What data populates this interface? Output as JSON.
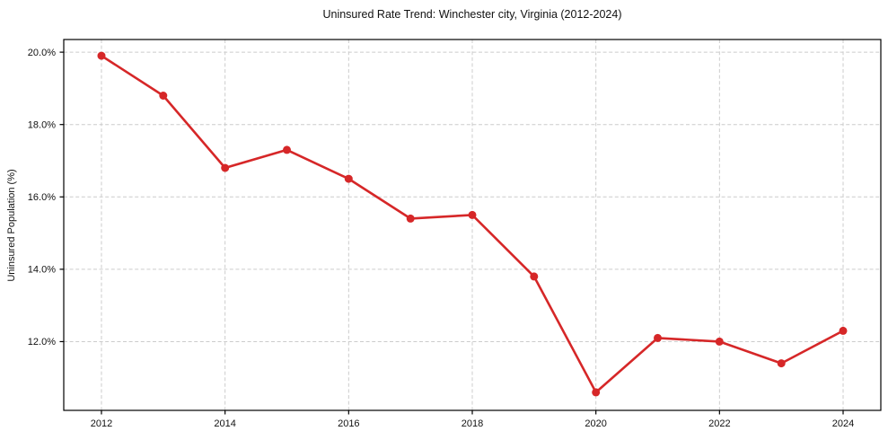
{
  "chart_data": {
    "type": "line",
    "title": "Uninsured Rate Trend: Winchester city, Virginia (2012-2024)",
    "xlabel": "",
    "ylabel": "Uninsured Population (%)",
    "x": [
      2012,
      2013,
      2014,
      2015,
      2016,
      2017,
      2018,
      2019,
      2020,
      2021,
      2022,
      2023,
      2024
    ],
    "values": [
      19.9,
      18.8,
      16.8,
      17.3,
      16.5,
      15.4,
      15.5,
      13.8,
      10.6,
      12.1,
      12.0,
      11.4,
      12.3
    ],
    "xticks": [
      2012,
      2014,
      2016,
      2018,
      2020,
      2022,
      2024
    ],
    "xtick_labels": [
      "2012",
      "2014",
      "2016",
      "2018",
      "2020",
      "2022",
      "2024"
    ],
    "yticks": [
      12,
      14,
      16,
      18,
      20
    ],
    "ytick_labels": [
      "12.0%",
      "14.0%",
      "16.0%",
      "18.0%",
      "20.0%"
    ],
    "xlim": [
      2011.39,
      2024.61
    ],
    "ylim": [
      10.1,
      20.35
    ],
    "grid": true,
    "legend": "none",
    "line_color": "#d62728",
    "grid_color": "#cccccc",
    "spine_color": "#000000",
    "marker_radius": 4.5,
    "line_width": 2.6
  }
}
